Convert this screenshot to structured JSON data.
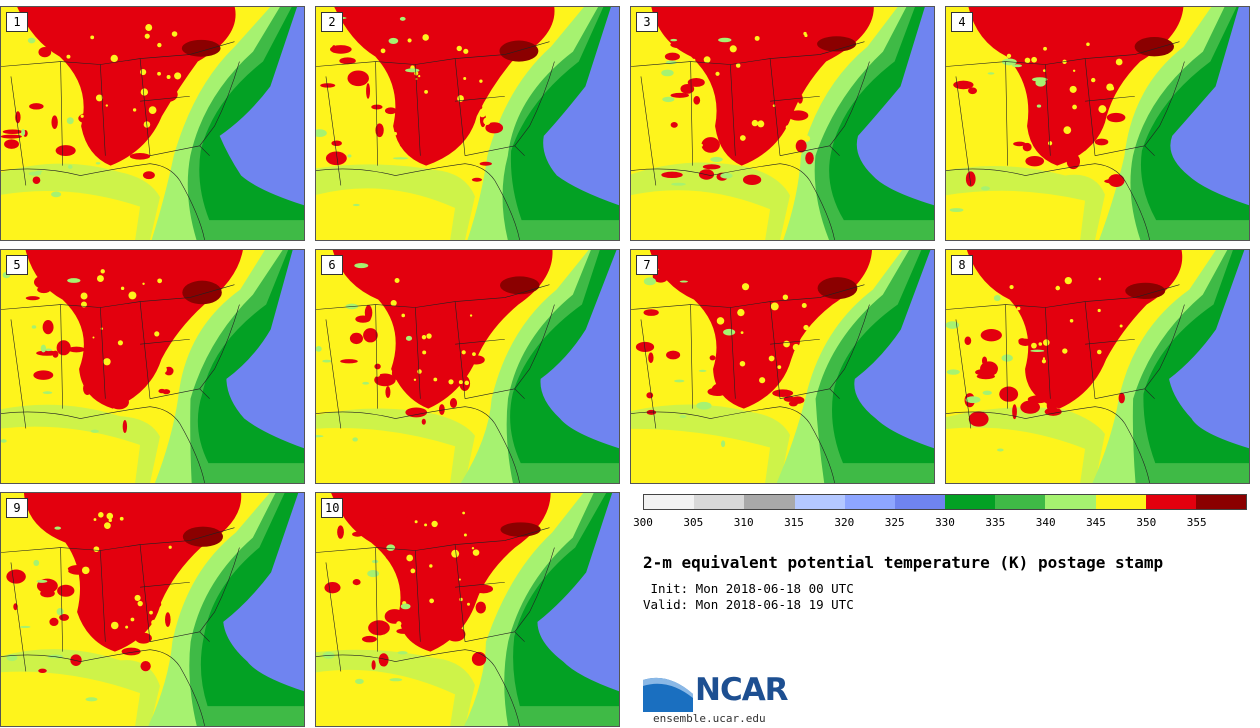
{
  "panels": [
    {
      "label": "1"
    },
    {
      "label": "2"
    },
    {
      "label": "3"
    },
    {
      "label": "4"
    },
    {
      "label": "5"
    },
    {
      "label": "6"
    },
    {
      "label": "7"
    },
    {
      "label": "8"
    },
    {
      "label": "9"
    },
    {
      "label": "10"
    }
  ],
  "colorbar": {
    "colors": [
      "#f2f2f2",
      "#d8d8d8",
      "#a9a9a9",
      "#b4c8ff",
      "#8ea6ff",
      "#6f84f0",
      "#03a124",
      "#3fba46",
      "#a6f270",
      "#fef41c",
      "#e3000e",
      "#8b0000"
    ],
    "ticks": [
      "300",
      "305",
      "310",
      "315",
      "320",
      "325",
      "330",
      "335",
      "340",
      "345",
      "350",
      "355"
    ]
  },
  "title": "2-m equivalent potential temperature (K) postage stamp",
  "init": " Init: Mon 2018-06-18 00 UTC",
  "valid": "Valid: Mon 2018-06-18 19 UTC",
  "logo": {
    "text": "NCAR",
    "website": "ensemble.ucar.edu"
  }
}
